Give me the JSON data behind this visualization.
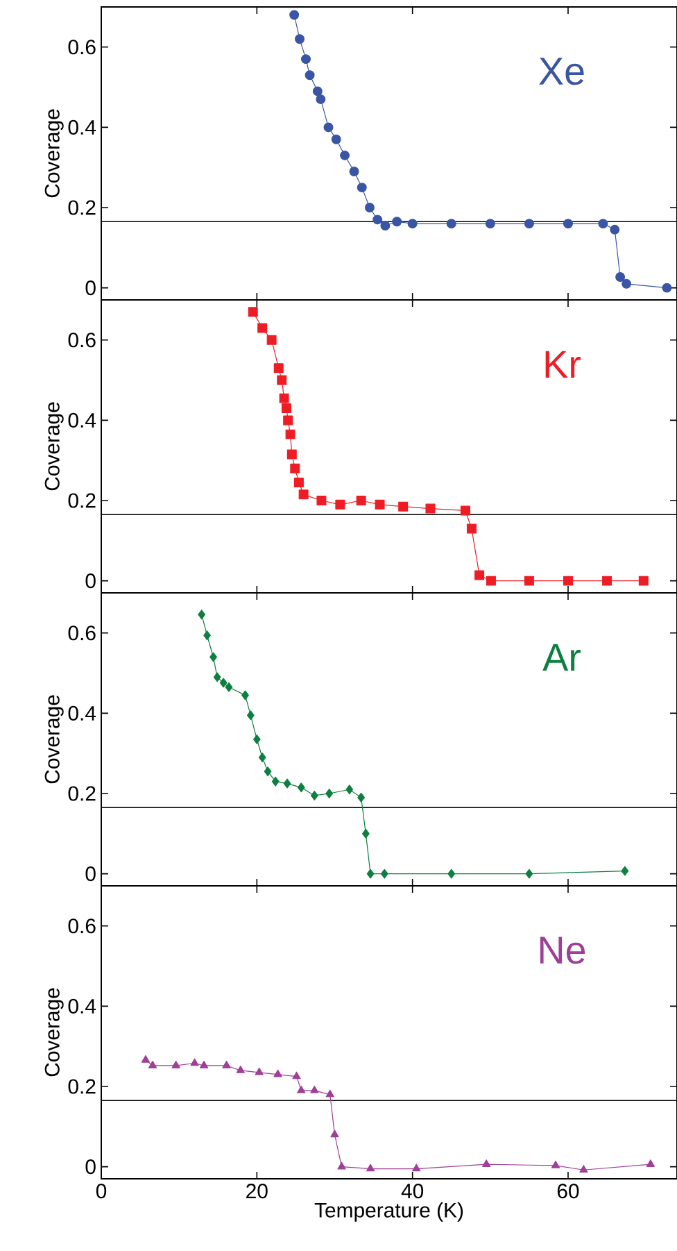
{
  "chart_data": [
    {
      "type": "line",
      "ylabel": "Coverage",
      "xlim": [
        0,
        74
      ],
      "ylim": [
        -0.03,
        0.7
      ],
      "xticks": [
        0,
        20,
        40,
        60
      ],
      "yticks": [
        0,
        0.2,
        0.4,
        0.6
      ],
      "tick_labels": "y",
      "marker": "circle",
      "line_style": "solid",
      "ref_lines": [
        {
          "axis": "y",
          "value": 0.165,
          "color": "#000000"
        }
      ],
      "series": [
        {
          "name": "Xe",
          "color": "#3a55a4",
          "x": [
            24.8,
            25.5,
            26.3,
            26.8,
            27.8,
            28.2,
            29.2,
            30.2,
            31.3,
            32.5,
            33.5,
            34.5,
            35.5,
            36.5,
            38,
            40,
            45,
            50,
            55,
            60,
            64.5,
            66,
            66.7,
            67.5,
            72.7
          ],
          "values": [
            0.68,
            0.62,
            0.57,
            0.53,
            0.49,
            0.47,
            0.4,
            0.37,
            0.33,
            0.29,
            0.25,
            0.2,
            0.17,
            0.155,
            0.165,
            0.16,
            0.16,
            0.16,
            0.16,
            0.16,
            0.16,
            0.145,
            0.027,
            0.01,
            0.0
          ]
        }
      ]
    },
    {
      "type": "line",
      "ylabel": "Coverage",
      "xlim": [
        0,
        74
      ],
      "ylim": [
        -0.03,
        0.7
      ],
      "xticks": [
        0,
        20,
        40,
        60
      ],
      "yticks": [
        0,
        0.2,
        0.4,
        0.6
      ],
      "tick_labels": "y",
      "marker": "square",
      "line_style": "solid",
      "ref_lines": [
        {
          "axis": "y",
          "value": 0.165,
          "color": "#000000"
        }
      ],
      "series": [
        {
          "name": "Kr",
          "color": "#ee1c25",
          "x": [
            19.5,
            20.7,
            21.9,
            22.8,
            23.2,
            23.5,
            23.8,
            24.0,
            24.3,
            24.5,
            24.9,
            25.4,
            26.0,
            28.3,
            30.7,
            33.4,
            35.8,
            38.8,
            42.3,
            46.8,
            47.6,
            48.6,
            50.1,
            55,
            60,
            65,
            69.7
          ],
          "values": [
            0.67,
            0.63,
            0.6,
            0.53,
            0.5,
            0.455,
            0.43,
            0.4,
            0.365,
            0.315,
            0.28,
            0.245,
            0.215,
            0.2,
            0.19,
            0.2,
            0.19,
            0.185,
            0.18,
            0.175,
            0.13,
            0.014,
            0.0,
            0.0,
            0.0,
            0.0,
            0.0
          ]
        }
      ]
    },
    {
      "type": "line",
      "ylabel": "Coverage",
      "xlim": [
        0,
        74
      ],
      "ylim": [
        -0.03,
        0.7
      ],
      "xticks": [
        0,
        20,
        40,
        60
      ],
      "yticks": [
        0,
        0.2,
        0.4,
        0.6
      ],
      "tick_labels": "y",
      "marker": "diamond",
      "line_style": "solid",
      "ref_lines": [
        {
          "axis": "y",
          "value": 0.165,
          "color": "#000000"
        }
      ],
      "series": [
        {
          "name": "Ar",
          "color": "#0d7f3f",
          "x": [
            12.9,
            13.6,
            14.4,
            14.9,
            15.7,
            16.4,
            18.5,
            19.2,
            20.0,
            20.7,
            21.4,
            22.4,
            23.9,
            25.7,
            27.4,
            29.3,
            31.9,
            33.4,
            34.0,
            34.6,
            36.4,
            45,
            55,
            67.3
          ],
          "values": [
            0.646,
            0.594,
            0.54,
            0.49,
            0.476,
            0.465,
            0.445,
            0.395,
            0.335,
            0.29,
            0.255,
            0.23,
            0.225,
            0.215,
            0.195,
            0.2,
            0.21,
            0.19,
            0.1,
            0.0,
            0.0,
            0.0,
            0.0,
            0.007
          ]
        }
      ]
    },
    {
      "type": "line",
      "ylabel": "Coverage",
      "xlabel": "Temperature (K)",
      "xlim": [
        0,
        74
      ],
      "ylim": [
        -0.03,
        0.7
      ],
      "xticks": [
        0,
        20,
        40,
        60
      ],
      "yticks": [
        0,
        0.2,
        0.4,
        0.6
      ],
      "marker": "triangle",
      "line_style": "solid",
      "ref_lines": [
        {
          "axis": "y",
          "value": 0.165,
          "color": "#000000"
        }
      ],
      "series": [
        {
          "name": "Ne",
          "color": "#9e3f98",
          "x": [
            5.7,
            6.6,
            9.6,
            12.0,
            13.2,
            16.1,
            17.9,
            20.3,
            22.7,
            25.1,
            25.7,
            27.4,
            29.4,
            30.0,
            30.9,
            34.6,
            40.5,
            49.5,
            58.4,
            62.0,
            70.6
          ],
          "values": [
            0.266,
            0.252,
            0.252,
            0.258,
            0.252,
            0.252,
            0.24,
            0.235,
            0.23,
            0.225,
            0.19,
            0.19,
            0.18,
            0.08,
            0.0,
            -0.005,
            -0.005,
            0.006,
            0.003,
            -0.008,
            0.006
          ]
        }
      ]
    }
  ]
}
